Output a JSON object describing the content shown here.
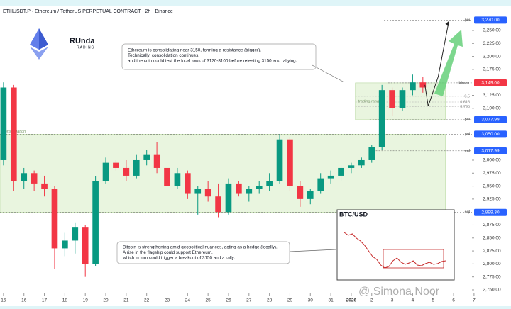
{
  "header": {
    "symbol": "ETHUSDT.P · Ethereum / TetherUS PERPETUAL CONTRACT · 2h · Binance"
  },
  "brand": {
    "name": "RUnda",
    "sub": "RADING"
  },
  "watermark": "@ Simona Noor",
  "chart_data": [
    {
      "type": "candlestick",
      "up_color": "#089981",
      "down_color": "#f23645",
      "xlim": [
        -0.17,
        22.9
      ],
      "ylim": [
        2748.6,
        3297.8
      ],
      "xticks": [
        {
          "value": 0,
          "label": "15"
        },
        {
          "value": 1,
          "label": "16"
        },
        {
          "value": 2,
          "label": "17"
        },
        {
          "value": 3,
          "label": "18"
        },
        {
          "value": 4,
          "label": "19"
        },
        {
          "value": 5,
          "label": "20"
        },
        {
          "value": 6,
          "label": "21"
        },
        {
          "value": 7,
          "label": "22"
        },
        {
          "value": 8,
          "label": "23"
        },
        {
          "value": 9,
          "label": "24"
        },
        {
          "value": 10,
          "label": "25"
        },
        {
          "value": 11,
          "label": "26"
        },
        {
          "value": 12,
          "label": "27"
        },
        {
          "value": 13,
          "label": "28"
        },
        {
          "value": 14,
          "label": "29"
        },
        {
          "value": 15,
          "label": "30"
        },
        {
          "value": 16,
          "label": "31"
        },
        {
          "value": 17,
          "label": "2026"
        },
        {
          "value": 18,
          "label": "2"
        },
        {
          "value": 19,
          "label": "3"
        },
        {
          "value": 20,
          "label": "4"
        },
        {
          "value": 21,
          "label": "5"
        },
        {
          "value": 22,
          "label": "6"
        },
        {
          "value": 23,
          "label": "7"
        }
      ],
      "yticks": [
        {
          "value": 3250,
          "label": "3,250.00"
        },
        {
          "value": 3225,
          "label": "3,225.00"
        },
        {
          "value": 3200,
          "label": "3,200.00"
        },
        {
          "value": 3175,
          "label": "3,175.00"
        },
        {
          "value": 3125,
          "label": "3,125.00"
        },
        {
          "value": 3100,
          "label": "3,100.00"
        },
        {
          "value": 3000,
          "label": "3,000.00"
        },
        {
          "value": 2975,
          "label": "2,975.00"
        },
        {
          "value": 2950,
          "label": "2,950.00"
        },
        {
          "value": 2925,
          "label": "2,925.00"
        },
        {
          "value": 2875,
          "label": "2,875.00"
        },
        {
          "value": 2850,
          "label": "2,850.00"
        },
        {
          "value": 2825,
          "label": "2,825.00"
        },
        {
          "value": 2800,
          "label": "2,800.00"
        },
        {
          "value": 2775,
          "label": "2,775.00"
        },
        {
          "value": 2750,
          "label": "2,750.00"
        }
      ],
      "x": [
        0,
        0.5,
        1,
        1.5,
        2,
        2.5,
        3,
        3.5,
        4,
        4.5,
        5,
        5.5,
        6,
        6.5,
        7,
        7.5,
        8,
        8.5,
        9,
        9.5,
        10,
        10.5,
        11,
        11.5,
        12,
        12.5,
        13,
        13.5,
        14,
        14.5,
        15,
        15.5,
        16,
        16.5,
        17,
        17.5,
        18,
        18.5,
        19,
        19.5,
        20,
        20.5
      ],
      "open": [
        3000,
        3140,
        2960,
        2975,
        2955,
        2945,
        2830,
        2845,
        2870,
        2800,
        2960,
        2995,
        2985,
        2970,
        3000,
        3010,
        2985,
        2950,
        2975,
        2935,
        2945,
        2930,
        2900,
        2955,
        2935,
        2945,
        2950,
        2960,
        3040,
        2950,
        2925,
        2940,
        2965,
        2970,
        2985,
        2990,
        3000,
        3025,
        3135,
        3100,
        3135,
        3150
      ],
      "high": [
        3150,
        3145,
        2985,
        2980,
        2970,
        2950,
        2860,
        2880,
        2875,
        2970,
        3005,
        3000,
        3000,
        3010,
        3020,
        3035,
        2995,
        2985,
        2980,
        2950,
        2960,
        2955,
        2965,
        2960,
        2950,
        2960,
        2975,
        3050,
        3045,
        2960,
        2945,
        2975,
        2980,
        2990,
        2995,
        3005,
        3030,
        3145,
        3140,
        3140,
        3165,
        3160
      ],
      "low": [
        2990,
        2940,
        2945,
        2940,
        2930,
        2790,
        2815,
        2820,
        2775,
        2795,
        2955,
        2980,
        2960,
        2965,
        2990,
        2975,
        2930,
        2945,
        2925,
        2895,
        2920,
        2890,
        2895,
        2930,
        2920,
        2935,
        2940,
        2955,
        2940,
        2910,
        2915,
        2935,
        2955,
        2960,
        2975,
        2985,
        2995,
        3020,
        3085,
        3095,
        3125,
        3130
      ],
      "close": [
        3140,
        2960,
        2975,
        2955,
        2945,
        2830,
        2845,
        2870,
        2800,
        2960,
        2995,
        2985,
        2970,
        3000,
        3010,
        2985,
        2950,
        2975,
        2935,
        2945,
        2930,
        2900,
        2955,
        2935,
        2945,
        2950,
        2960,
        3040,
        2950,
        2925,
        2940,
        2965,
        2970,
        2985,
        2990,
        3000,
        3025,
        3135,
        3100,
        3135,
        3150,
        3140
      ],
      "levels": [
        {
          "value": 3270,
          "label": "3,270.00",
          "name": "poi",
          "color": "#2962ff",
          "start": 18.6
        },
        {
          "value": 3149,
          "label": "3,149.00",
          "name": "trigger",
          "color": "#f23645",
          "start": 18.8
        },
        {
          "value": 3077.99,
          "label": "3,077.99",
          "name": "poi",
          "color": "#2962ff",
          "start": 17.9
        },
        {
          "value": 3050,
          "label": "3,050.00",
          "name": "poi",
          "color": "#2962ff",
          "start": -0.17
        },
        {
          "value": 3017.99,
          "label": "3,017.99",
          "name": "eql",
          "color": "#2962ff",
          "start": 18.2
        },
        {
          "value": 2899.3,
          "label": "2,899.30",
          "name": "eql",
          "color": "#2962ff",
          "start": -0.17
        }
      ],
      "fib": [
        {
          "label": "0.5",
          "value": 3123
        },
        {
          "label": "0.618",
          "value": 3112
        },
        {
          "label": "0.705",
          "value": 3103
        }
      ],
      "zones": [
        {
          "name": "consolidation",
          "low": 2899.3,
          "high": 3050,
          "start": -0.17,
          "end": 21.6
        },
        {
          "name": "trading range",
          "low": 3077.99,
          "high": 3149,
          "start": 17.2,
          "end": 21.6
        }
      ],
      "projection": {
        "x": [
          20.6,
          20.76,
          21.25,
          21.77
        ],
        "y": [
          3145,
          3104,
          3161,
          3268
        ]
      },
      "notes": [
        [
          "Ethereum is consolidating near 3150, forming a resistance (trigger).",
          "Technically, consolidation continues,",
          "and the coin could test the local lows of 3120-3100 before retesting 3150 and rallying."
        ],
        [
          "Bitcoin is strengthening amid geopolitical nuances, acting as a hedge (locally).",
          "A rise in the flagship could support Ethereum,",
          "which in turn could trigger a breakout of 3150 and a rally."
        ]
      ]
    },
    {
      "type": "line",
      "title": "BTC/USD",
      "color": "#c62828",
      "ylim": [
        80000,
        118000
      ],
      "values": [
        110000,
        108000,
        109000,
        106000,
        104000,
        101000,
        97000,
        93000,
        91000,
        87000,
        85000,
        86000,
        90000,
        92000,
        89000,
        87500,
        88500,
        90000,
        87000,
        86500,
        88000,
        89000,
        87500,
        88000,
        89500,
        90000
      ]
    }
  ]
}
